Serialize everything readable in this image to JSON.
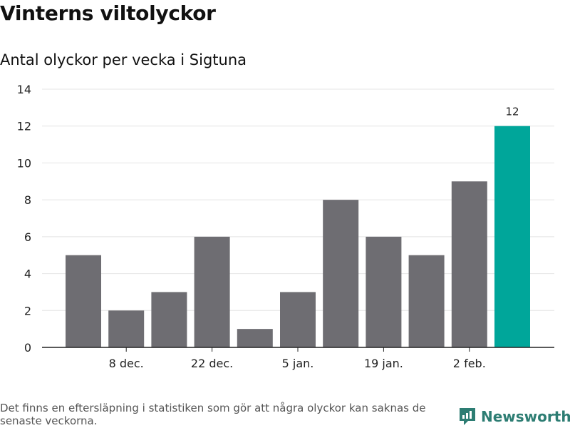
{
  "title": "Vinterns viltolyckor",
  "subtitle": "Antal olyckor per vecka i Sigtuna",
  "footnote": "Det finns en eftersläpning i statistiken som gör att några olyckor kan saknas de senaste veckorna.",
  "brand": {
    "name": "Newsworthy",
    "icon": "newsworthy-logo-icon",
    "color": "#2d7d73"
  },
  "colors": {
    "bar": "#6e6d72",
    "highlight": "#00a69a",
    "grid": "#e4e4e4",
    "axis": "#222222"
  },
  "chart_data": {
    "type": "bar",
    "x": [
      "",
      "8 dec.",
      "",
      "22 dec.",
      "",
      "5 jan.",
      "",
      "19 jan.",
      "",
      "2 feb.",
      ""
    ],
    "values": [
      5,
      2,
      3,
      6,
      1,
      3,
      8,
      6,
      5,
      9,
      12
    ],
    "highlight_index": 10,
    "data_labels": [
      {
        "index": 10,
        "text": "12"
      }
    ],
    "yticks": [
      0,
      2,
      4,
      6,
      8,
      10,
      12,
      14
    ],
    "ylim": [
      0,
      14
    ],
    "grid": true,
    "xlabel": "",
    "ylabel": ""
  }
}
